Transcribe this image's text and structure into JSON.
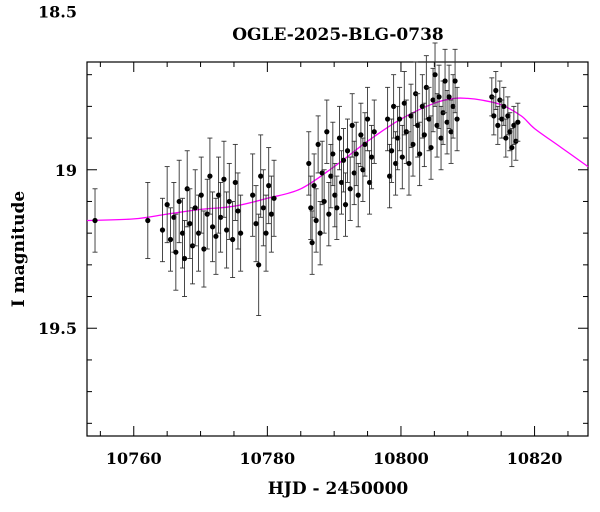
{
  "chart_data": {
    "type": "scatter",
    "title": "OGLE-2025-BLG-0738",
    "xlabel": "HJD - 2450000",
    "ylabel": "I magnitude",
    "xlim": [
      10753,
      10828
    ],
    "ylim": [
      19.84,
      18.66
    ],
    "y_inverted": true,
    "x_ticks": [
      10760,
      10780,
      10800,
      10820
    ],
    "y_ticks": [
      {
        "value": 18.5,
        "label": "18.5"
      },
      {
        "value": 19.0,
        "label": "19"
      },
      {
        "value": 19.5,
        "label": "19.5"
      }
    ],
    "grid": false,
    "colors": {
      "data": "#000000",
      "errorbar": "#333333",
      "model": "#ff00ff"
    },
    "series": [
      {
        "points": [
          [
            10754.2,
            19.16,
            0.1
          ],
          [
            10762.1,
            19.16,
            0.12
          ],
          [
            10764.3,
            19.19,
            0.1
          ],
          [
            10765.0,
            19.11,
            0.12
          ],
          [
            10765.5,
            19.22,
            0.1
          ],
          [
            10766.0,
            19.15,
            0.11
          ],
          [
            10766.3,
            19.26,
            0.12
          ],
          [
            10766.8,
            19.1,
            0.13
          ],
          [
            10767.3,
            19.2,
            0.11
          ],
          [
            10767.6,
            19.28,
            0.12
          ],
          [
            10768.0,
            19.06,
            0.12
          ],
          [
            10768.4,
            19.17,
            0.11
          ],
          [
            10768.8,
            19.24,
            0.12
          ],
          [
            10769.2,
            19.12,
            0.12
          ],
          [
            10769.7,
            19.2,
            0.12
          ],
          [
            10770.1,
            19.08,
            0.12
          ],
          [
            10770.5,
            19.25,
            0.12
          ],
          [
            10771.0,
            19.14,
            0.11
          ],
          [
            10771.4,
            19.02,
            0.12
          ],
          [
            10771.8,
            19.18,
            0.11
          ],
          [
            10772.3,
            19.21,
            0.12
          ],
          [
            10772.7,
            19.08,
            0.12
          ],
          [
            10773.0,
            19.15,
            0.11
          ],
          [
            10773.5,
            19.03,
            0.12
          ],
          [
            10773.9,
            19.19,
            0.12
          ],
          [
            10774.3,
            19.1,
            0.12
          ],
          [
            10774.8,
            19.22,
            0.12
          ],
          [
            10775.2,
            19.04,
            0.12
          ],
          [
            10775.6,
            19.13,
            0.12
          ],
          [
            10776.0,
            19.2,
            0.12
          ],
          [
            10777.8,
            19.08,
            0.13
          ],
          [
            10778.3,
            19.17,
            0.12
          ],
          [
            10778.7,
            19.3,
            0.16
          ],
          [
            10779.0,
            19.02,
            0.13
          ],
          [
            10779.4,
            19.12,
            0.12
          ],
          [
            10779.8,
            19.2,
            0.12
          ],
          [
            10780.2,
            19.05,
            0.12
          ],
          [
            10780.6,
            19.14,
            0.12
          ],
          [
            10781.0,
            19.09,
            0.12
          ],
          [
            10786.2,
            18.98,
            0.1
          ],
          [
            10786.5,
            19.12,
            0.1
          ],
          [
            10786.7,
            19.23,
            0.1
          ],
          [
            10787.0,
            19.05,
            0.1
          ],
          [
            10787.3,
            19.16,
            0.1
          ],
          [
            10787.6,
            18.92,
            0.09
          ],
          [
            10787.9,
            19.2,
            0.1
          ],
          [
            10788.2,
            19.01,
            0.1
          ],
          [
            10788.5,
            19.1,
            0.1
          ],
          [
            10788.9,
            18.88,
            0.1
          ],
          [
            10789.2,
            19.14,
            0.1
          ],
          [
            10789.5,
            19.02,
            0.1
          ],
          [
            10789.8,
            18.95,
            0.1
          ],
          [
            10790.1,
            19.08,
            0.1
          ],
          [
            10790.4,
            19.12,
            0.1
          ],
          [
            10790.8,
            18.9,
            0.1
          ],
          [
            10791.1,
            19.04,
            0.1
          ],
          [
            10791.4,
            18.97,
            0.1
          ],
          [
            10791.7,
            19.11,
            0.1
          ],
          [
            10792.0,
            18.94,
            0.1
          ],
          [
            10792.4,
            19.06,
            0.1
          ],
          [
            10792.7,
            18.86,
            0.1
          ],
          [
            10793.0,
            19.01,
            0.1
          ],
          [
            10793.3,
            18.95,
            0.1
          ],
          [
            10793.6,
            19.08,
            0.1
          ],
          [
            10794.0,
            18.89,
            0.1
          ],
          [
            10794.3,
            19.0,
            0.1
          ],
          [
            10794.6,
            18.92,
            0.1
          ],
          [
            10795.0,
            18.84,
            0.1
          ],
          [
            10795.3,
            19.04,
            0.1
          ],
          [
            10795.6,
            18.96,
            0.1
          ],
          [
            10796.0,
            18.88,
            0.1
          ],
          [
            10798.0,
            18.84,
            0.1
          ],
          [
            10798.3,
            19.02,
            0.1
          ],
          [
            10798.6,
            18.94,
            0.1
          ],
          [
            10798.9,
            18.8,
            0.1
          ],
          [
            10799.2,
            18.98,
            0.1
          ],
          [
            10799.5,
            18.9,
            0.1
          ],
          [
            10799.8,
            18.84,
            0.1
          ],
          [
            10800.2,
            18.96,
            0.1
          ],
          [
            10800.5,
            18.79,
            0.1
          ],
          [
            10800.8,
            18.88,
            0.1
          ],
          [
            10801.2,
            18.98,
            0.1
          ],
          [
            10801.5,
            18.83,
            0.1
          ],
          [
            10801.8,
            18.92,
            0.1
          ],
          [
            10802.2,
            18.76,
            0.1
          ],
          [
            10802.5,
            18.86,
            0.1
          ],
          [
            10802.8,
            18.95,
            0.1
          ],
          [
            10803.2,
            18.8,
            0.1
          ],
          [
            10803.5,
            18.89,
            0.1
          ],
          [
            10803.8,
            18.74,
            0.1
          ],
          [
            10804.2,
            18.84,
            0.1
          ],
          [
            10804.5,
            18.93,
            0.1
          ],
          [
            10804.8,
            18.78,
            0.1
          ],
          [
            10805.1,
            18.7,
            0.1
          ],
          [
            10805.4,
            18.86,
            0.1
          ],
          [
            10805.7,
            18.77,
            0.1
          ],
          [
            10806.0,
            18.9,
            0.1
          ],
          [
            10806.3,
            18.82,
            0.1
          ],
          [
            10806.6,
            18.72,
            0.1
          ],
          [
            10806.9,
            18.85,
            0.1
          ],
          [
            10807.2,
            18.77,
            0.1
          ],
          [
            10807.5,
            18.88,
            0.1
          ],
          [
            10807.8,
            18.8,
            0.1
          ],
          [
            10808.1,
            18.72,
            0.1
          ],
          [
            10808.4,
            18.84,
            0.1
          ],
          [
            10813.6,
            18.77,
            0.06
          ],
          [
            10813.9,
            18.83,
            0.06
          ],
          [
            10814.2,
            18.75,
            0.06
          ],
          [
            10814.5,
            18.86,
            0.06
          ],
          [
            10814.8,
            18.78,
            0.06
          ],
          [
            10815.1,
            18.84,
            0.06
          ],
          [
            10815.4,
            18.8,
            0.06
          ],
          [
            10815.7,
            18.9,
            0.06
          ],
          [
            10816.0,
            18.83,
            0.06
          ],
          [
            10816.3,
            18.88,
            0.06
          ],
          [
            10816.6,
            18.93,
            0.06
          ],
          [
            10816.9,
            18.86,
            0.06
          ],
          [
            10817.2,
            18.91,
            0.06
          ],
          [
            10817.5,
            18.85,
            0.06
          ]
        ]
      }
    ],
    "model": {
      "x": [
        10753,
        10760,
        10765,
        10770,
        10775,
        10780,
        10785,
        10790,
        10795,
        10800,
        10805,
        10808,
        10810,
        10812,
        10815,
        10818,
        10820,
        10824,
        10828
      ],
      "y": [
        19.16,
        19.155,
        19.14,
        19.125,
        19.115,
        19.09,
        19.06,
        18.99,
        18.91,
        18.84,
        18.79,
        18.775,
        18.775,
        18.78,
        18.795,
        18.83,
        18.87,
        18.93,
        18.99
      ]
    }
  }
}
